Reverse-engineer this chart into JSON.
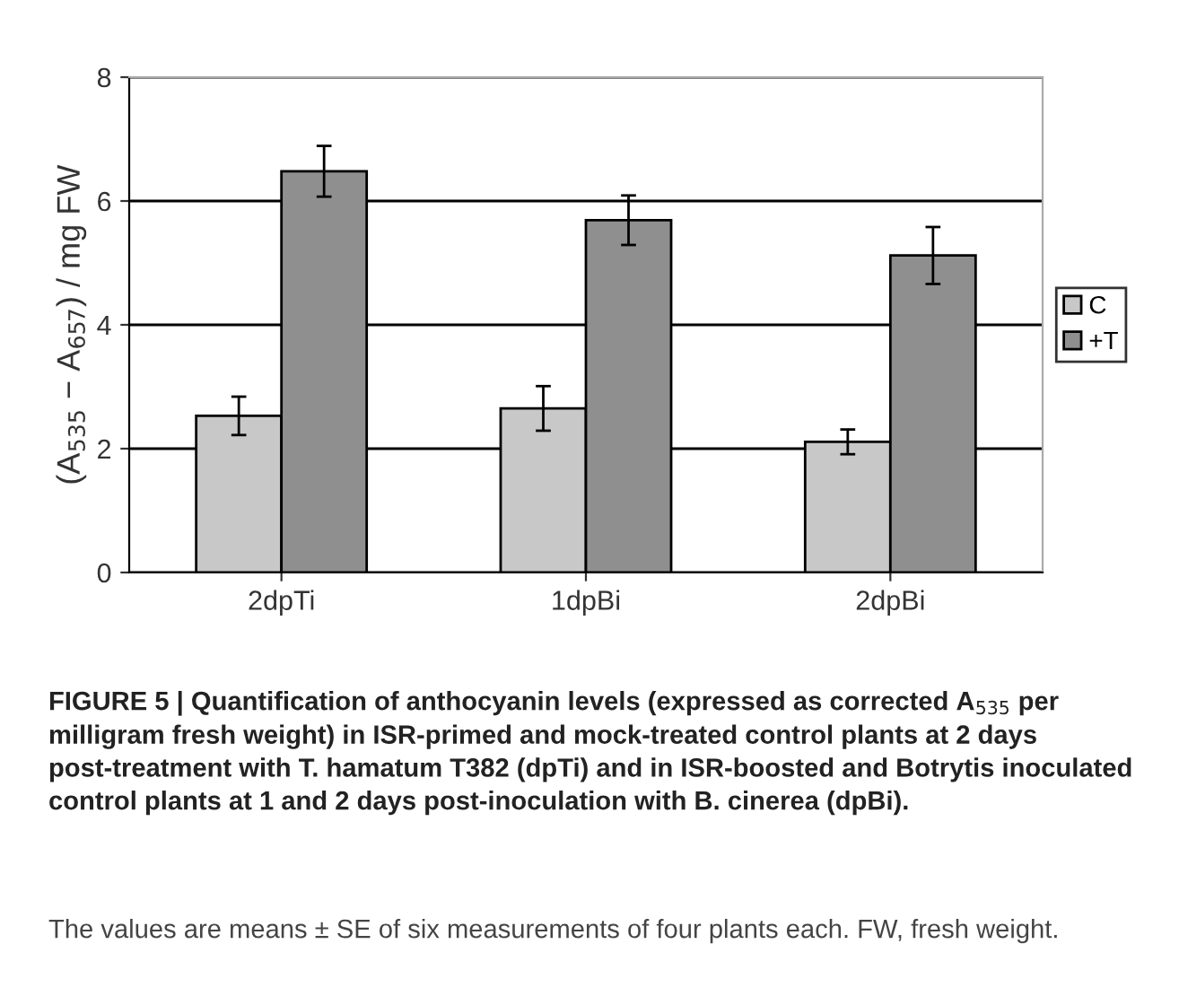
{
  "chart_data": {
    "type": "bar",
    "categories": [
      "2dpTi",
      "1dpBi",
      "2dpBi"
    ],
    "series": [
      {
        "name": "C",
        "color": "#c8c8c8",
        "values": [
          2.53,
          2.65,
          2.11
        ],
        "errors": [
          0.31,
          0.36,
          0.2
        ]
      },
      {
        "name": "+T",
        "color": "#8f8f8f",
        "values": [
          6.48,
          5.69,
          5.12
        ],
        "errors": [
          0.41,
          0.4,
          0.46
        ]
      }
    ],
    "ylabel": "(A$_{535}$ − A$_{657}$) / mg FW",
    "ylim": [
      0,
      8
    ],
    "yticks": [
      0,
      2,
      4,
      6,
      8
    ],
    "grid": "y",
    "legend": "right",
    "annotations": [
      "FIGURE 5 | Quantification of anthocyanin levels (expressed as corrected A$_{535}$ per milligram fresh weight) in ISR-primed and mock-treated control plants at 2 days post-treatment with T. hamatum T382 (dpTi) and in ISR-boosted and Botrytis inoculated control plants at 1 and 2 days post-inoculation with B. cinerea (dpBi).",
      "The values are means ± SE of six measurements of four plants each. FW, fresh weight."
    ]
  }
}
